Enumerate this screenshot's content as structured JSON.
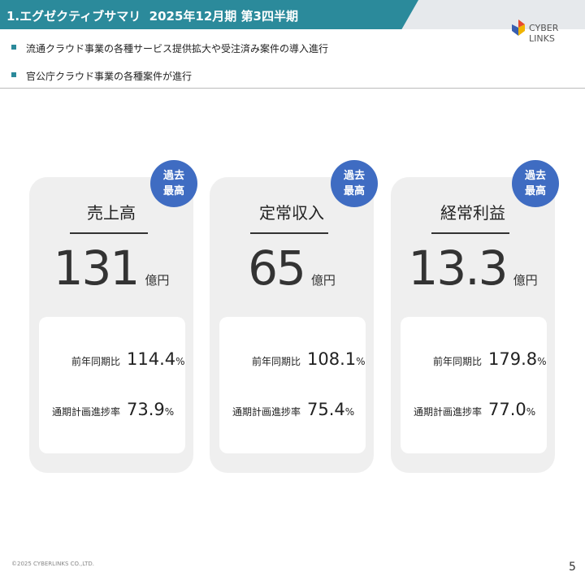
{
  "header": {
    "title": "1.エグゼクティブサマリ  2025年12月期 第3四半期",
    "logo": "CYBER LINKS"
  },
  "bullets": [
    "流通クラウド事業の各種サービス提供拡大や受注済み案件の導入進行",
    "官公庁クラウド事業の各種案件が進行"
  ],
  "cards": [
    {
      "badge": [
        "過去",
        "最高"
      ],
      "label": "売上高",
      "value": "131",
      "unit": "億円",
      "rows": [
        {
          "label": "前年同期比",
          "value": "114.4",
          "unit": "%"
        },
        {
          "label": "通期計画進捗率",
          "value": "73.9",
          "unit": "%"
        }
      ]
    },
    {
      "badge": [
        "過去",
        "最高"
      ],
      "label": "定常収入",
      "value": "65",
      "unit": "億円",
      "rows": [
        {
          "label": "前年同期比",
          "value": "108.1",
          "unit": "%"
        },
        {
          "label": "通期計画進捗率",
          "value": "75.4",
          "unit": "%"
        }
      ]
    },
    {
      "badge": [
        "過去",
        "最高"
      ],
      "label": "経常利益",
      "value": "13.3",
      "unit": "億円",
      "rows": [
        {
          "label": "前年同期比",
          "value": "179.8",
          "unit": "%"
        },
        {
          "label": "通期計画進捗率",
          "value": "77.0",
          "unit": "%"
        }
      ]
    }
  ],
  "footer": {
    "copyright": "©2025 CYBERLINKS CO.,LTD.",
    "page": "5"
  }
}
